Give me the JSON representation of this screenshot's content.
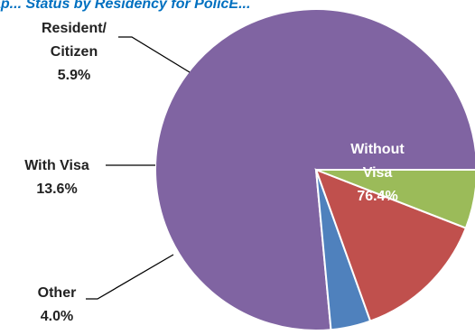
{
  "chart_data": {
    "type": "pie",
    "title": "ap... Status by Residency for PolicE...",
    "start_angle_deg": 0,
    "direction": "counterclockwise",
    "slices": [
      {
        "key": "without-visa",
        "label_lines": [
          "Without",
          "Visa"
        ],
        "value": 76.4,
        "value_label": "76.4%",
        "color": "#8064a2",
        "label_inside": true
      },
      {
        "key": "other",
        "label_lines": [
          "Other"
        ],
        "value": 4.0,
        "value_label": "4.0%",
        "color": "#4f81bd",
        "label_inside": false
      },
      {
        "key": "with-visa",
        "label_lines": [
          "With Visa"
        ],
        "value": 13.6,
        "value_label": "13.6%",
        "color": "#c0504d",
        "label_inside": false
      },
      {
        "key": "resident-citizen",
        "label_lines": [
          "Resident/",
          "Citizen"
        ],
        "value": 5.9,
        "value_label": "5.9%",
        "color": "#9bbb59",
        "label_inside": false
      }
    ]
  }
}
